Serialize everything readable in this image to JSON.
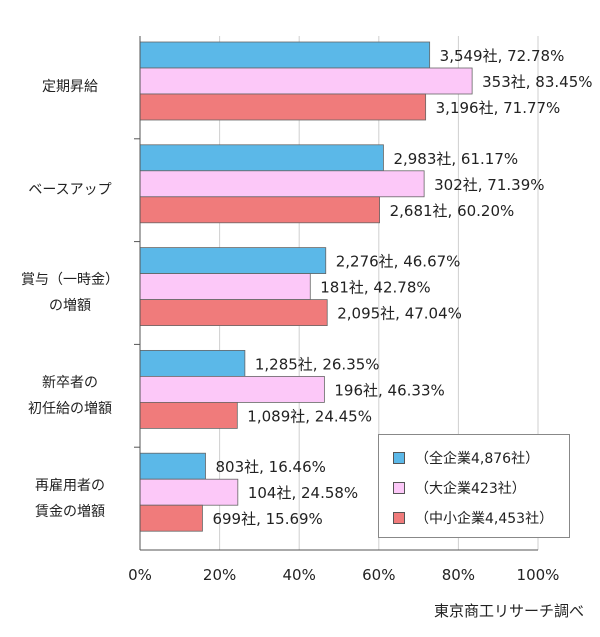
{
  "chart_data": {
    "type": "bar",
    "orientation": "horizontal",
    "categories": [
      "定期昇給",
      "ベースアップ",
      "賞与（一時金）の増額",
      "新卒者の初任給の増額",
      "再雇用者の賃金の増額"
    ],
    "category_lines": [
      [
        "定期昇給"
      ],
      [
        "ベースアップ"
      ],
      [
        "賞与（一時金）",
        "の増額"
      ],
      [
        "新卒者の",
        "初任給の増額"
      ],
      [
        "再雇用者の",
        "賃金の増額"
      ]
    ],
    "series": [
      {
        "name": "（全企業4,876社）",
        "color": "#5bb8e8",
        "values": [
          72.78,
          61.17,
          46.67,
          26.35,
          16.46
        ],
        "labels": [
          "3,549社, 72.78%",
          "2,983社, 61.17%",
          "2,276社, 46.67%",
          "1,285社, 26.35%",
          "803社, 16.46%"
        ]
      },
      {
        "name": "（大企業423社）",
        "color": "#fcc8f8",
        "values": [
          83.45,
          71.39,
          42.78,
          46.33,
          24.58
        ],
        "labels": [
          "353社, 83.45%",
          "302社, 71.39%",
          "181社, 42.78%",
          "196社, 46.33%",
          "104社, 24.58%"
        ]
      },
      {
        "name": "（中小企業4,453社）",
        "color": "#f07b7b",
        "values": [
          71.77,
          60.2,
          47.04,
          24.45,
          15.69
        ],
        "labels": [
          "3,196社, 71.77%",
          "2,681社, 60.20%",
          "2,095社, 47.04%",
          "1,089社, 24.45%",
          "699社, 15.69%"
        ]
      }
    ],
    "xlim": [
      0,
      100
    ],
    "xticks": [
      "0%",
      "20%",
      "40%",
      "60%",
      "80%",
      "100%"
    ],
    "grid": true,
    "legend_position": "bottom-right"
  },
  "source": "東京商工リサーチ調べ"
}
